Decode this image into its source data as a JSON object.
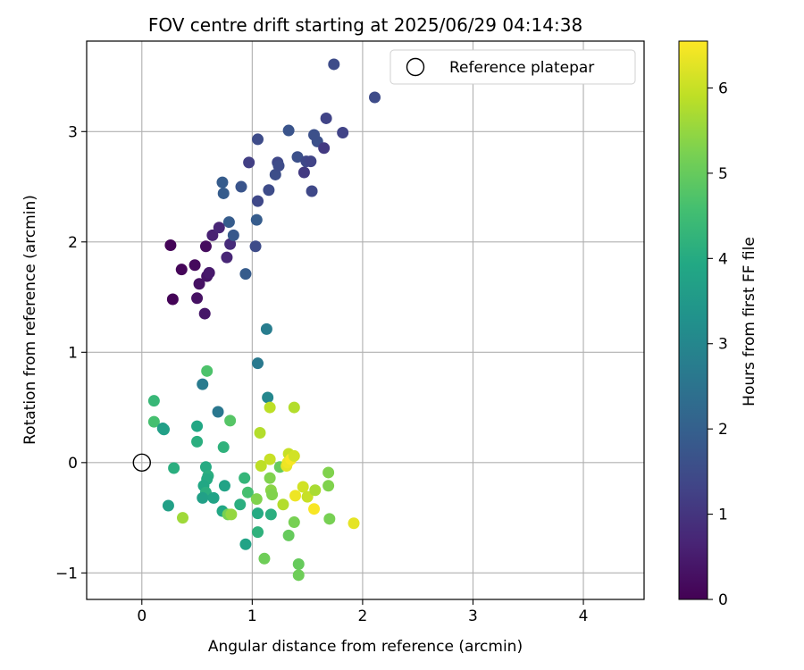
{
  "chart_data": {
    "type": "scatter",
    "title": "FOV centre drift starting at 2025/06/29 04:14:38",
    "xlabel": "Angular distance from reference (arcmin)",
    "ylabel": "Rotation from reference (arcmin)",
    "xlim": [
      -0.5,
      4.55
    ],
    "ylim": [
      -1.24,
      3.82
    ],
    "xticks": [
      0,
      1,
      2,
      3,
      4
    ],
    "yticks": [
      -1,
      0,
      1,
      2,
      3
    ],
    "grid": true,
    "legend": {
      "placement": "top-right",
      "entries": [
        "Reference platepar"
      ]
    },
    "reference_point": {
      "label": "Reference platepar",
      "x": 0,
      "y": 0
    },
    "colorbar": {
      "label": "Hours from first FF file",
      "colormap": "viridis",
      "range": [
        0,
        6.55
      ],
      "ticks": [
        0,
        1,
        2,
        3,
        4,
        5,
        6
      ]
    },
    "series": [
      {
        "points": [
          {
            "x": 0.26,
            "y": 1.97,
            "c": 0.05
          },
          {
            "x": 0.28,
            "y": 1.48,
            "c": 0.05
          },
          {
            "x": 0.36,
            "y": 1.75,
            "c": 0.1
          },
          {
            "x": 0.48,
            "y": 1.79,
            "c": 0.15
          },
          {
            "x": 0.5,
            "y": 1.49,
            "c": 0.3
          },
          {
            "x": 0.52,
            "y": 1.62,
            "c": 0.3
          },
          {
            "x": 0.57,
            "y": 1.35,
            "c": 0.4
          },
          {
            "x": 0.58,
            "y": 1.96,
            "c": 0.2
          },
          {
            "x": 0.59,
            "y": 1.69,
            "c": 0.35
          },
          {
            "x": 0.61,
            "y": 1.72,
            "c": 0.45
          },
          {
            "x": 0.64,
            "y": 2.06,
            "c": 0.6
          },
          {
            "x": 0.7,
            "y": 2.13,
            "c": 0.7
          },
          {
            "x": 0.77,
            "y": 1.86,
            "c": 0.7
          },
          {
            "x": 0.8,
            "y": 1.98,
            "c": 0.8
          },
          {
            "x": 0.73,
            "y": 2.54,
            "c": 1.9
          },
          {
            "x": 0.74,
            "y": 2.44,
            "c": 1.9
          },
          {
            "x": 0.79,
            "y": 2.18,
            "c": 1.9
          },
          {
            "x": 0.83,
            "y": 2.06,
            "c": 1.8
          },
          {
            "x": 0.9,
            "y": 2.5,
            "c": 1.7
          },
          {
            "x": 0.94,
            "y": 1.71,
            "c": 1.9
          },
          {
            "x": 0.97,
            "y": 2.72,
            "c": 1.2
          },
          {
            "x": 1.03,
            "y": 1.96,
            "c": 1.5
          },
          {
            "x": 1.04,
            "y": 2.2,
            "c": 1.9
          },
          {
            "x": 1.05,
            "y": 2.37,
            "c": 1.4
          },
          {
            "x": 1.05,
            "y": 2.93,
            "c": 1.5
          },
          {
            "x": 1.15,
            "y": 2.47,
            "c": 1.5
          },
          {
            "x": 1.21,
            "y": 2.61,
            "c": 1.55
          },
          {
            "x": 1.23,
            "y": 2.72,
            "c": 1.4
          },
          {
            "x": 1.24,
            "y": 2.69,
            "c": 1.5
          },
          {
            "x": 1.33,
            "y": 3.01,
            "c": 1.7
          },
          {
            "x": 1.41,
            "y": 2.77,
            "c": 1.6
          },
          {
            "x": 1.47,
            "y": 2.63,
            "c": 1.1
          },
          {
            "x": 1.49,
            "y": 2.73,
            "c": 1.4
          },
          {
            "x": 1.53,
            "y": 2.73,
            "c": 1.3
          },
          {
            "x": 1.54,
            "y": 2.46,
            "c": 1.4
          },
          {
            "x": 1.56,
            "y": 2.97,
            "c": 1.6
          },
          {
            "x": 1.59,
            "y": 2.91,
            "c": 1.6
          },
          {
            "x": 1.65,
            "y": 2.85,
            "c": 1.1
          },
          {
            "x": 1.67,
            "y": 3.12,
            "c": 1.3
          },
          {
            "x": 1.74,
            "y": 3.61,
            "c": 1.5
          },
          {
            "x": 1.82,
            "y": 2.99,
            "c": 1.3
          },
          {
            "x": 2.11,
            "y": 3.31,
            "c": 1.5
          },
          {
            "x": 1.13,
            "y": 1.21,
            "c": 2.75
          },
          {
            "x": 1.05,
            "y": 0.9,
            "c": 2.65
          },
          {
            "x": 1.14,
            "y": 0.59,
            "c": 3.0
          },
          {
            "x": 0.55,
            "y": 0.71,
            "c": 2.7
          },
          {
            "x": 0.69,
            "y": 0.46,
            "c": 2.6
          },
          {
            "x": 0.59,
            "y": 0.83,
            "c": 4.7
          },
          {
            "x": 0.11,
            "y": 0.56,
            "c": 4.35
          },
          {
            "x": 0.11,
            "y": 0.37,
            "c": 4.6
          },
          {
            "x": 0.19,
            "y": 0.31,
            "c": 3.6
          },
          {
            "x": 0.2,
            "y": 0.3,
            "c": 3.7
          },
          {
            "x": 0.5,
            "y": 0.33,
            "c": 3.9
          },
          {
            "x": 0.5,
            "y": 0.19,
            "c": 4.1
          },
          {
            "x": 0.74,
            "y": 0.14,
            "c": 4.2
          },
          {
            "x": 0.8,
            "y": 0.38,
            "c": 4.8
          },
          {
            "x": 0.29,
            "y": -0.05,
            "c": 4.1
          },
          {
            "x": 0.24,
            "y": -0.39,
            "c": 3.7
          },
          {
            "x": 0.58,
            "y": -0.04,
            "c": 4.0
          },
          {
            "x": 0.6,
            "y": -0.12,
            "c": 4.1
          },
          {
            "x": 0.59,
            "y": -0.15,
            "c": 4.0
          },
          {
            "x": 0.56,
            "y": -0.21,
            "c": 3.9
          },
          {
            "x": 0.58,
            "y": -0.27,
            "c": 4.1
          },
          {
            "x": 0.55,
            "y": -0.32,
            "c": 3.7
          },
          {
            "x": 0.65,
            "y": -0.32,
            "c": 3.8
          },
          {
            "x": 0.75,
            "y": -0.21,
            "c": 3.8
          },
          {
            "x": 0.73,
            "y": -0.44,
            "c": 3.9
          },
          {
            "x": 0.89,
            "y": -0.38,
            "c": 4.1
          },
          {
            "x": 0.93,
            "y": -0.14,
            "c": 4.3
          },
          {
            "x": 0.96,
            "y": -0.27,
            "c": 4.6
          },
          {
            "x": 0.94,
            "y": -0.74,
            "c": 3.8
          },
          {
            "x": 1.05,
            "y": -0.46,
            "c": 4.0
          },
          {
            "x": 1.05,
            "y": -0.63,
            "c": 4.2
          },
          {
            "x": 1.17,
            "y": -0.47,
            "c": 4.1
          },
          {
            "x": 1.11,
            "y": -0.87,
            "c": 5.1
          },
          {
            "x": 1.33,
            "y": -0.66,
            "c": 5.0
          },
          {
            "x": 1.38,
            "y": -0.54,
            "c": 5.2
          },
          {
            "x": 1.42,
            "y": -0.92,
            "c": 5.0
          },
          {
            "x": 1.42,
            "y": -1.02,
            "c": 5.1
          },
          {
            "x": 1.17,
            "y": -0.25,
            "c": 5.4
          },
          {
            "x": 1.18,
            "y": -0.29,
            "c": 5.3
          },
          {
            "x": 1.16,
            "y": -0.14,
            "c": 5.3
          },
          {
            "x": 1.25,
            "y": -0.04,
            "c": 5.0
          },
          {
            "x": 1.04,
            "y": -0.33,
            "c": 5.3
          },
          {
            "x": 0.37,
            "y": -0.5,
            "c": 5.6
          },
          {
            "x": 0.78,
            "y": -0.47,
            "c": 5.2
          },
          {
            "x": 0.81,
            "y": -0.47,
            "c": 5.5
          },
          {
            "x": 1.16,
            "y": 0.5,
            "c": 5.9
          },
          {
            "x": 1.38,
            "y": 0.5,
            "c": 5.8
          },
          {
            "x": 1.07,
            "y": 0.27,
            "c": 5.8
          },
          {
            "x": 1.08,
            "y": -0.03,
            "c": 5.9
          },
          {
            "x": 1.16,
            "y": 0.03,
            "c": 6.0
          },
          {
            "x": 1.28,
            "y": -0.38,
            "c": 5.8
          },
          {
            "x": 1.31,
            "y": -0.03,
            "c": 6.3
          },
          {
            "x": 1.33,
            "y": 0.08,
            "c": 6.0
          },
          {
            "x": 1.32,
            "y": 0.0,
            "c": 6.4
          },
          {
            "x": 1.35,
            "y": 0.03,
            "c": 6.5
          },
          {
            "x": 1.38,
            "y": 0.06,
            "c": 6.1
          },
          {
            "x": 1.39,
            "y": -0.3,
            "c": 6.4
          },
          {
            "x": 1.46,
            "y": -0.22,
            "c": 6.1
          },
          {
            "x": 1.5,
            "y": -0.31,
            "c": 6.0
          },
          {
            "x": 1.56,
            "y": -0.42,
            "c": 6.5
          },
          {
            "x": 1.57,
            "y": -0.25,
            "c": 5.7
          },
          {
            "x": 1.69,
            "y": -0.09,
            "c": 5.3
          },
          {
            "x": 1.69,
            "y": -0.21,
            "c": 5.3
          },
          {
            "x": 1.7,
            "y": -0.51,
            "c": 5.2
          },
          {
            "x": 1.92,
            "y": -0.55,
            "c": 6.3
          }
        ]
      }
    ]
  }
}
